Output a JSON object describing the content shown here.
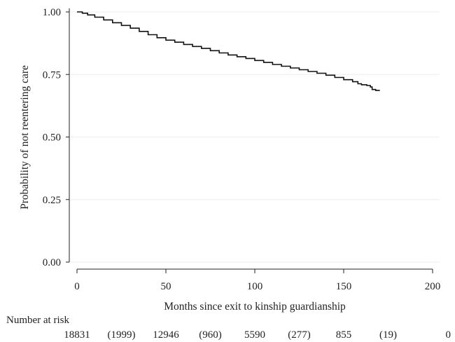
{
  "chart_data": {
    "type": "line",
    "title": "",
    "xlabel": "Months since exit to kinship guardianship",
    "ylabel": "Probability of not reentering care",
    "xlim": [
      0,
      200
    ],
    "ylim": [
      0,
      1
    ],
    "x_ticks": [
      "0",
      "50",
      "100",
      "150",
      "200"
    ],
    "y_ticks": [
      "0.00",
      "0.25",
      "0.50",
      "0.75",
      "1.00"
    ],
    "grid": true,
    "series": [
      {
        "points": [
          [
            0,
            1.0
          ],
          [
            3,
            0.995
          ],
          [
            6,
            0.988
          ],
          [
            10,
            0.979
          ],
          [
            15,
            0.968
          ],
          [
            20,
            0.957
          ],
          [
            25,
            0.946
          ],
          [
            30,
            0.935
          ],
          [
            35,
            0.922
          ],
          [
            40,
            0.909
          ],
          [
            45,
            0.897
          ],
          [
            50,
            0.887
          ],
          [
            55,
            0.879
          ],
          [
            60,
            0.87
          ],
          [
            65,
            0.862
          ],
          [
            70,
            0.854
          ],
          [
            75,
            0.845
          ],
          [
            80,
            0.836
          ],
          [
            85,
            0.828
          ],
          [
            90,
            0.821
          ],
          [
            95,
            0.814
          ],
          [
            100,
            0.806
          ],
          [
            105,
            0.798
          ],
          [
            110,
            0.79
          ],
          [
            115,
            0.783
          ],
          [
            120,
            0.776
          ],
          [
            125,
            0.769
          ],
          [
            130,
            0.762
          ],
          [
            135,
            0.755
          ],
          [
            140,
            0.747
          ],
          [
            145,
            0.738
          ],
          [
            150,
            0.729
          ],
          [
            155,
            0.721
          ],
          [
            158,
            0.713
          ],
          [
            160,
            0.709
          ],
          [
            163,
            0.706
          ],
          [
            165,
            0.7
          ],
          [
            166,
            0.69
          ],
          [
            168,
            0.686
          ]
        ]
      }
    ],
    "risk_table": {
      "label": "Number at risk",
      "at_risk": [
        "18831",
        "12946",
        "5590",
        "855",
        "0"
      ],
      "at_risk_x": [
        0,
        50,
        100,
        150,
        200
      ],
      "events": [
        "(1999)",
        "(960)",
        "(277)",
        "(19)"
      ],
      "events_x": [
        25,
        75,
        125,
        175
      ]
    }
  }
}
